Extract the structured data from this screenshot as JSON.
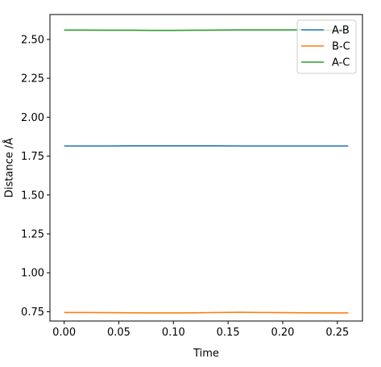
{
  "chart_data": {
    "type": "line",
    "title": "",
    "xlabel": "Time",
    "ylabel": "Distance /Å",
    "xlim": [
      -0.013,
      0.273
    ],
    "ylim": [
      0.69,
      2.66
    ],
    "xticks": [
      0.0,
      0.05,
      0.1,
      0.15,
      0.2,
      0.25
    ],
    "xtick_labels": [
      "0.00",
      "0.05",
      "0.10",
      "0.15",
      "0.20",
      "0.25"
    ],
    "yticks": [
      0.75,
      1.0,
      1.25,
      1.5,
      1.75,
      2.0,
      2.25,
      2.5
    ],
    "ytick_labels": [
      "0.75",
      "1.00",
      "1.25",
      "1.50",
      "1.75",
      "2.00",
      "2.25",
      "2.50"
    ],
    "grid": false,
    "legend_position": "top-right",
    "x": [
      0.0,
      0.02,
      0.04,
      0.06,
      0.08,
      0.1,
      0.12,
      0.14,
      0.16,
      0.18,
      0.2,
      0.22,
      0.24,
      0.26
    ],
    "series": [
      {
        "name": "A-B",
        "color": "#1f77b4",
        "values": [
          1.815,
          1.815,
          1.815,
          1.816,
          1.816,
          1.816,
          1.816,
          1.816,
          1.815,
          1.815,
          1.815,
          1.815,
          1.815,
          1.815
        ]
      },
      {
        "name": "B-C",
        "color": "#ff7f0e",
        "values": [
          0.745,
          0.745,
          0.744,
          0.743,
          0.742,
          0.742,
          0.743,
          0.745,
          0.746,
          0.745,
          0.744,
          0.743,
          0.742,
          0.742
        ]
      },
      {
        "name": "A-C",
        "color": "#2ca02c",
        "values": [
          2.56,
          2.56,
          2.559,
          2.559,
          2.558,
          2.558,
          2.559,
          2.56,
          2.561,
          2.561,
          2.561,
          2.561,
          2.56,
          2.56
        ]
      }
    ]
  }
}
